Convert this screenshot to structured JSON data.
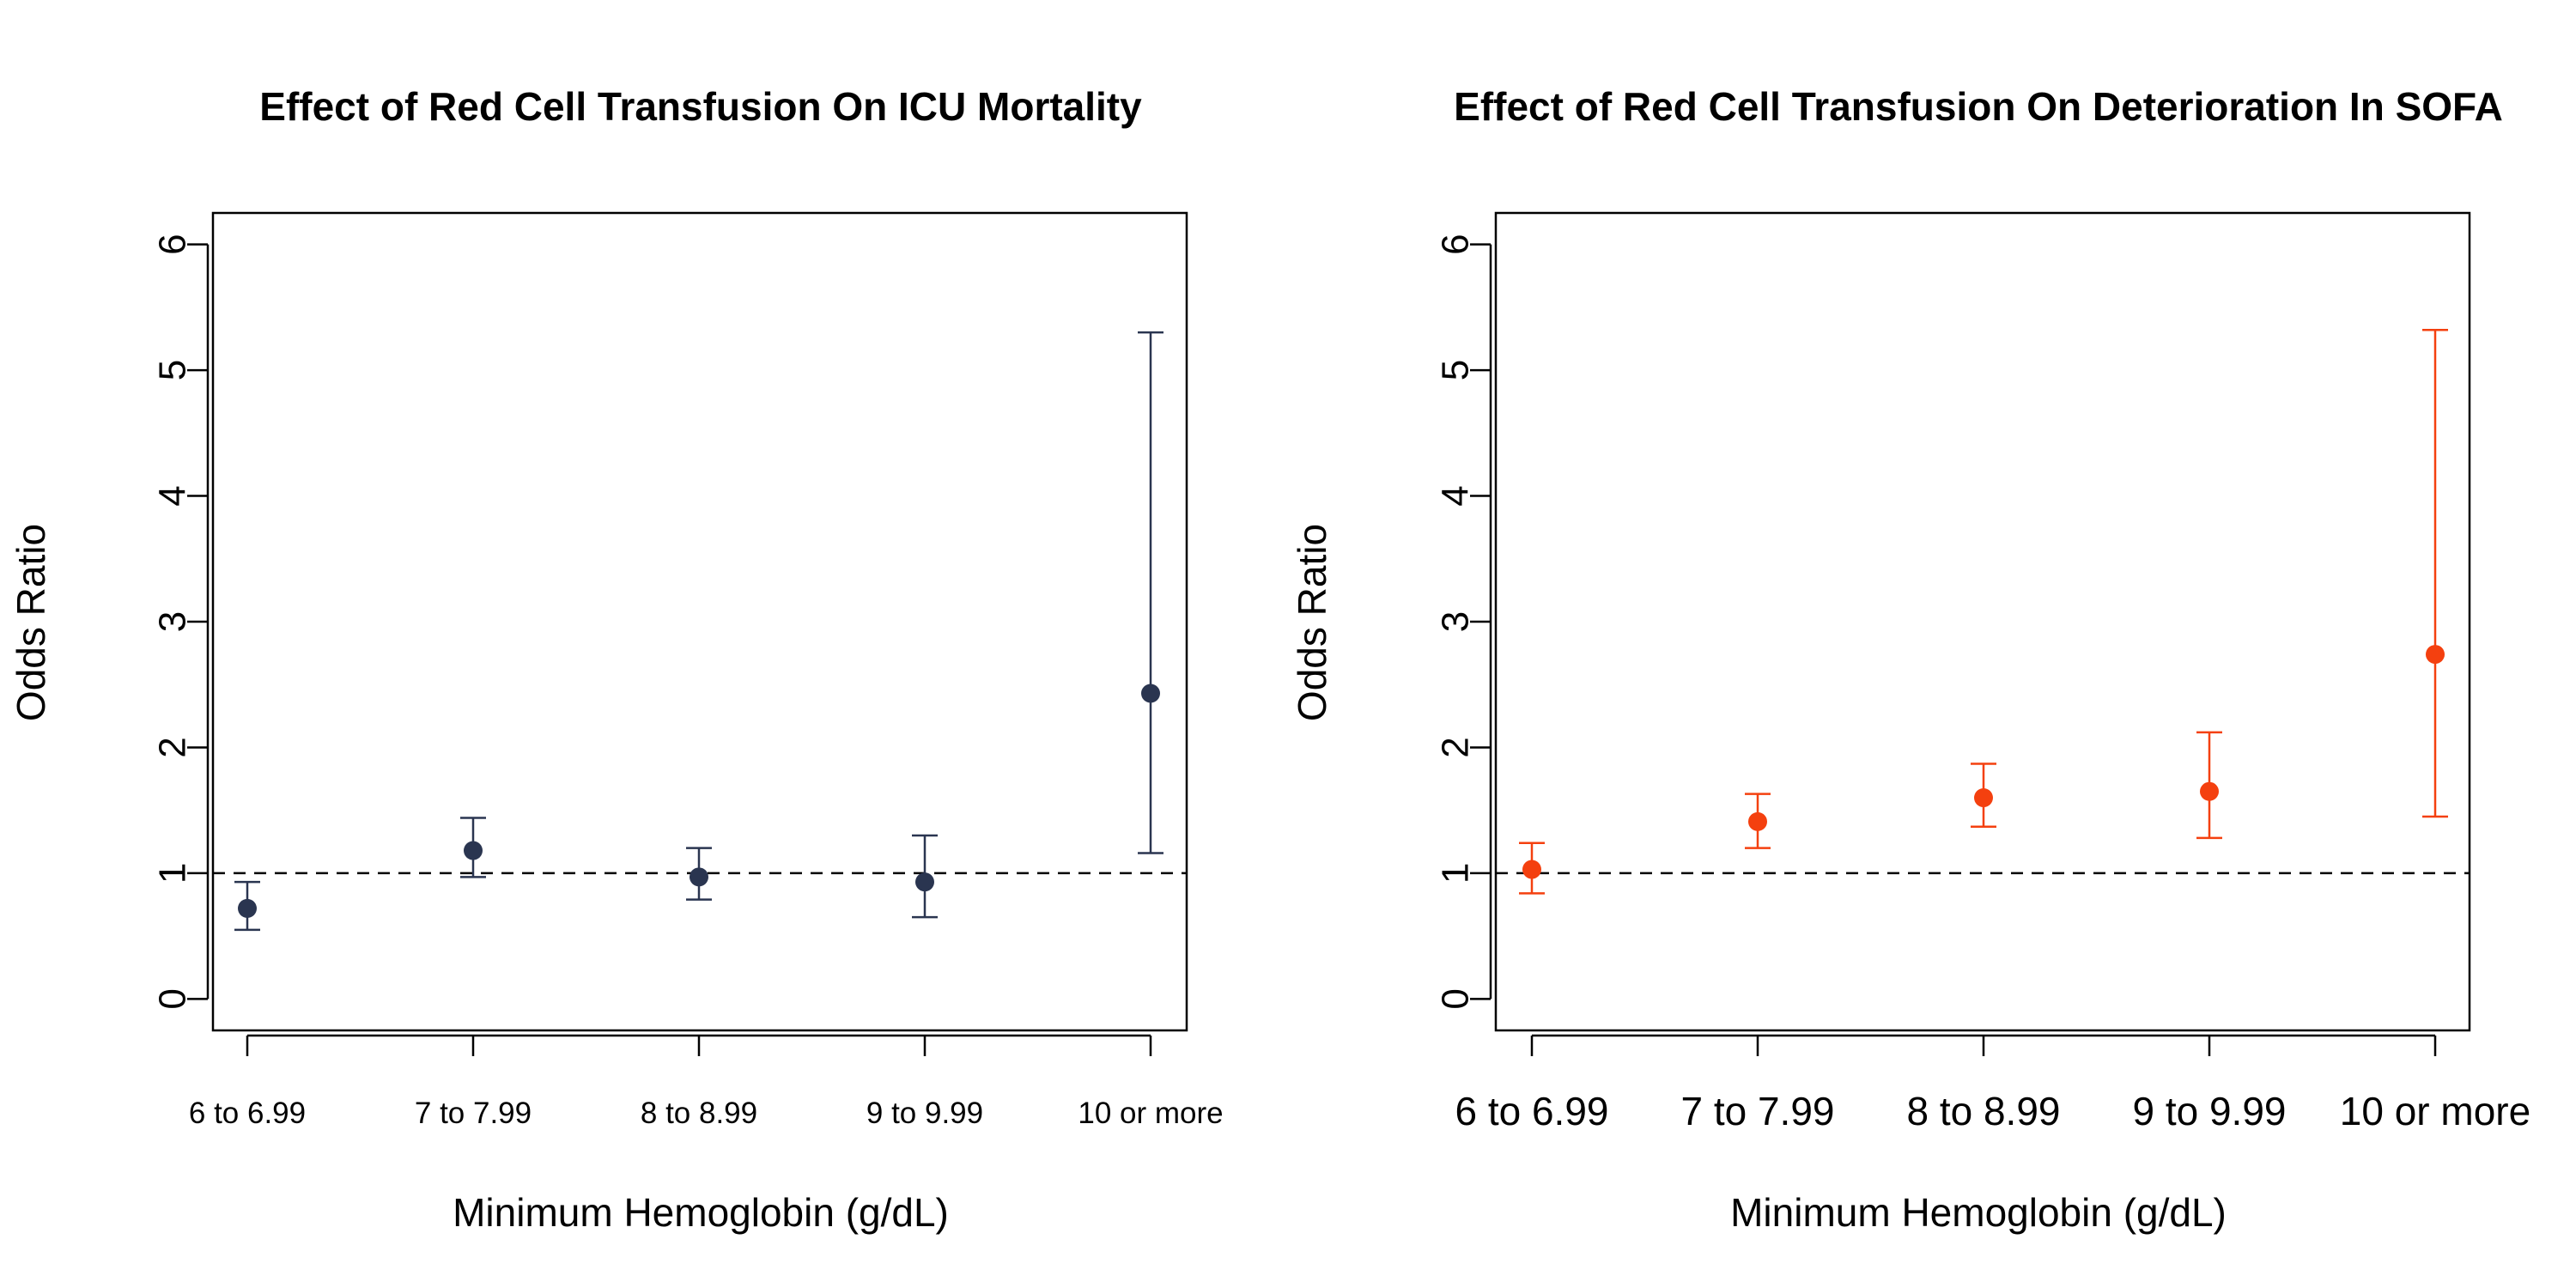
{
  "chart_data": [
    {
      "type": "scatter",
      "title": "Effect of Red Cell Transfusion On ICU Mortality",
      "xlabel": "Minimum Hemoglobin (g/dL)",
      "ylabel": "Odds Ratio",
      "categories": [
        "6 to 6.99",
        "7 to 7.99",
        "8 to 8.99",
        "9 to 9.99",
        "10 or more"
      ],
      "values": [
        0.72,
        1.18,
        0.97,
        0.93,
        2.43
      ],
      "lower": [
        0.55,
        0.97,
        0.79,
        0.65,
        1.16
      ],
      "upper": [
        0.93,
        1.44,
        1.2,
        1.3,
        5.3
      ],
      "yticks": [
        0,
        1,
        2,
        3,
        4,
        5,
        6
      ],
      "ylim": [
        -0.25,
        6.25
      ],
      "reference_line": 1,
      "grid": false,
      "color": "#2a3550"
    },
    {
      "type": "scatter",
      "title": "Effect of Red Cell Transfusion On Deterioration In SOFA",
      "xlabel": "Minimum Hemoglobin (g/dL)",
      "ylabel": "Odds Ratio",
      "categories": [
        "6 to 6.99",
        "7 to 7.99",
        "8 to 8.99",
        "9 to 9.99",
        "10 or more"
      ],
      "values": [
        1.03,
        1.41,
        1.6,
        1.65,
        2.74
      ],
      "lower": [
        0.84,
        1.2,
        1.37,
        1.28,
        1.45
      ],
      "upper": [
        1.24,
        1.63,
        1.87,
        2.12,
        5.32
      ],
      "yticks": [
        0,
        1,
        2,
        3,
        4,
        5,
        6
      ],
      "ylim": [
        -0.25,
        6.25
      ],
      "reference_line": 1,
      "grid": false,
      "color": "#f4400f"
    }
  ]
}
